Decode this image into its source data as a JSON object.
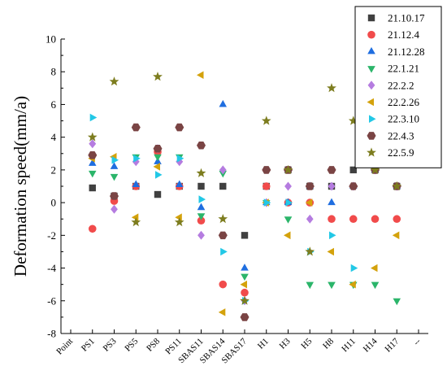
{
  "chart_data": {
    "type": "scatter",
    "title": "",
    "xlabel": "",
    "ylabel": "Deformation speed(mm/a)",
    "ylim": [
      -8,
      10
    ],
    "yticks": [
      -8,
      -6,
      -4,
      -2,
      0,
      2,
      4,
      6,
      8,
      10
    ],
    "categories": [
      "Point",
      "PS1",
      "PS3",
      "PS5",
      "PS8",
      "PS11",
      "SBAS11",
      "SBAS14",
      "SBAS17",
      "H1",
      "H3",
      "H5",
      "H8",
      "H11",
      "H14",
      "H17",
      "--"
    ],
    "grid": false,
    "legend_position": "top-right",
    "series": [
      {
        "name": "21.10.17",
        "marker": "square",
        "color": "#404040",
        "values": [
          null,
          0.9,
          0.4,
          1.0,
          0.5,
          1.0,
          1.0,
          1.0,
          -2.0,
          1.0,
          2.0,
          1.0,
          1.0,
          2.0,
          2.0,
          1.0,
          null
        ]
      },
      {
        "name": "21.12.4",
        "marker": "circle",
        "color": "#f14b4b",
        "values": [
          null,
          -1.6,
          0.1,
          1.0,
          3.1,
          1.0,
          -1.1,
          -5.0,
          -5.5,
          1.0,
          0.0,
          0.0,
          -1.0,
          -1.0,
          -1.0,
          -1.0,
          null
        ]
      },
      {
        "name": "21.12.28",
        "marker": "triangle-up",
        "color": "#1f6ee0",
        "values": [
          null,
          2.4,
          2.2,
          1.1,
          2.5,
          1.1,
          -0.3,
          6.0,
          -4.0,
          0.0,
          0.0,
          1.0,
          0.0,
          1.0,
          2.0,
          1.0,
          null
        ]
      },
      {
        "name": "22.1.21",
        "marker": "triangle-down",
        "color": "#2bb56a",
        "values": [
          null,
          1.8,
          1.6,
          2.8,
          2.8,
          2.8,
          -0.8,
          1.8,
          -4.5,
          0.0,
          -1.0,
          -5.0,
          -5.0,
          -5.0,
          -5.0,
          -6.0,
          null
        ]
      },
      {
        "name": "22.2.2",
        "marker": "diamond",
        "color": "#b57ce0",
        "values": [
          null,
          3.6,
          -0.4,
          2.5,
          3.3,
          2.5,
          -2.0,
          2.0,
          -6.0,
          0.0,
          1.0,
          -1.0,
          1.0,
          1.0,
          2.0,
          1.0,
          null
        ]
      },
      {
        "name": "22.2.26",
        "marker": "triangle-left",
        "color": "#d4a20c",
        "values": [
          null,
          2.7,
          2.8,
          -0.9,
          2.2,
          -0.9,
          7.8,
          -6.7,
          -5.0,
          0.0,
          -2.0,
          0.0,
          -3.0,
          -5.0,
          -4.0,
          -2.0,
          null
        ]
      },
      {
        "name": "22.3.10",
        "marker": "triangle-right",
        "color": "#22c8e6",
        "values": [
          null,
          5.2,
          2.6,
          2.7,
          1.7,
          2.7,
          0.2,
          -3.0,
          -6.0,
          0.0,
          0.0,
          -3.0,
          -2.0,
          -4.0,
          2.0,
          1.0,
          null
        ]
      },
      {
        "name": "22.4.3",
        "marker": "hexagon",
        "color": "#7a4444",
        "values": [
          null,
          2.9,
          0.4,
          4.6,
          3.3,
          4.6,
          3.5,
          -2.0,
          -7.0,
          2.0,
          2.0,
          1.0,
          2.0,
          1.0,
          2.0,
          1.0,
          null
        ]
      },
      {
        "name": "22.5.9",
        "marker": "star",
        "color": "#7d7d1f",
        "values": [
          null,
          4.0,
          7.4,
          -1.2,
          7.7,
          -1.2,
          1.8,
          -1.0,
          -6.0,
          5.0,
          2.0,
          -3.0,
          7.0,
          5.0,
          2.0,
          1.0,
          null
        ]
      }
    ]
  }
}
